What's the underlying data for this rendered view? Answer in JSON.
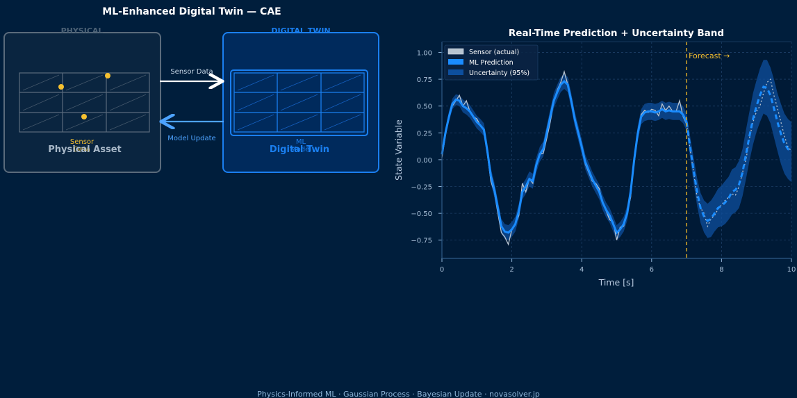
{
  "title": "ML-Enhanced Digital Twin — CAE",
  "footer": "Physics-Informed ML · Gaussian Process · Bayesian Update · novasolver.jp",
  "diagram": {
    "physical_header": "PHYSICAL",
    "physical_label": "Physical Asset",
    "sensor_label": "Sensor",
    "sensor_label_2": "Data",
    "twin_header": "DIGITAL TWIN",
    "twin_label": "Digital Twin",
    "ml_label": "ML",
    "ml_label_2": "Model",
    "arrow_forward_label": "Sensor Data",
    "arrow_back_label": "Model Update",
    "colors": {
      "physical_border": "#5a6b7c",
      "twin_border": "#1a7ff0",
      "sensor_dot": "#f5c030",
      "arrow_forward": "#ffffff",
      "arrow_back": "#4da3ff"
    }
  },
  "chart_data": {
    "type": "line",
    "title": "Real-Time Prediction + Uncertainty Band",
    "xlabel": "Time  [s]",
    "ylabel": "State Variable",
    "xlim": [
      0,
      10
    ],
    "ylim": [
      -0.92,
      1.1
    ],
    "xticks": [
      "0",
      "2",
      "4",
      "6",
      "8",
      "10"
    ],
    "yticks": [
      "−0.75",
      "−0.50",
      "−0.25",
      "0.00",
      "0.25",
      "0.50",
      "0.75",
      "1.00"
    ],
    "ytick_values": [
      -0.75,
      -0.5,
      -0.25,
      0,
      0.25,
      0.5,
      0.75,
      1.0
    ],
    "grid": true,
    "legend_position": "top-left",
    "forecast_x": 7.0,
    "forecast_label": "Forecast →",
    "x": [
      0.0,
      0.1,
      0.2,
      0.3,
      0.4,
      0.5,
      0.6,
      0.7,
      0.8,
      0.9,
      1.0,
      1.1,
      1.2,
      1.3,
      1.4,
      1.5,
      1.6,
      1.7,
      1.8,
      1.9,
      2.0,
      2.1,
      2.2,
      2.3,
      2.4,
      2.5,
      2.6,
      2.7,
      2.8,
      2.9,
      3.0,
      3.1,
      3.2,
      3.3,
      3.4,
      3.5,
      3.6,
      3.7,
      3.8,
      3.9,
      4.0,
      4.1,
      4.2,
      4.3,
      4.4,
      4.5,
      4.6,
      4.7,
      4.8,
      4.9,
      5.0,
      5.1,
      5.2,
      5.3,
      5.4,
      5.5,
      5.6,
      5.7,
      5.8,
      5.9,
      6.0,
      6.1,
      6.2,
      6.3,
      6.4,
      6.5,
      6.6,
      6.7,
      6.8,
      6.9,
      7.0,
      7.1,
      7.2,
      7.3,
      7.4,
      7.5,
      7.6,
      7.7,
      7.8,
      7.9,
      8.0,
      8.1,
      8.2,
      8.3,
      8.4,
      8.5,
      8.6,
      8.7,
      8.8,
      8.9,
      9.0,
      9.1,
      9.2,
      9.3,
      9.4,
      9.5,
      9.6,
      9.7,
      9.8,
      9.9,
      10.0
    ],
    "series": [
      {
        "name": "Sensor (actual)",
        "color": "#b8c4d0",
        "values": [
          0.02,
          0.22,
          0.4,
          0.5,
          0.55,
          0.6,
          0.5,
          0.55,
          0.45,
          0.4,
          0.38,
          0.32,
          0.28,
          0.05,
          -0.2,
          -0.3,
          -0.5,
          -0.68,
          -0.72,
          -0.79,
          -0.65,
          -0.6,
          -0.52,
          -0.22,
          -0.3,
          -0.18,
          -0.22,
          -0.06,
          0.05,
          0.06,
          0.2,
          0.35,
          0.55,
          0.65,
          0.72,
          0.82,
          0.7,
          0.57,
          0.4,
          0.23,
          0.14,
          -0.04,
          -0.12,
          -0.2,
          -0.22,
          -0.27,
          -0.4,
          -0.48,
          -0.56,
          -0.58,
          -0.75,
          -0.63,
          -0.62,
          -0.5,
          -0.35,
          0.0,
          0.25,
          0.42,
          0.46,
          0.44,
          0.47,
          0.46,
          0.41,
          0.52,
          0.46,
          0.5,
          0.45,
          0.45,
          0.55,
          0.4,
          0.33,
          0.1,
          -0.12,
          -0.35,
          -0.45,
          -0.5,
          -0.62,
          -0.55,
          -0.52,
          -0.46,
          -0.42,
          -0.38,
          -0.35,
          -0.32,
          -0.33,
          -0.25,
          -0.12,
          0.0,
          0.2,
          0.35,
          0.45,
          0.5,
          0.62,
          0.72,
          0.75,
          0.6,
          0.48,
          0.35,
          0.22,
          0.12,
          0.08
        ]
      },
      {
        "name": "ML Prediction",
        "color": "#1a8cff",
        "values": [
          0.05,
          0.25,
          0.4,
          0.52,
          0.56,
          0.55,
          0.5,
          0.48,
          0.45,
          0.4,
          0.35,
          0.32,
          0.28,
          0.08,
          -0.15,
          -0.28,
          -0.45,
          -0.62,
          -0.67,
          -0.68,
          -0.65,
          -0.6,
          -0.48,
          -0.3,
          -0.25,
          -0.18,
          -0.2,
          -0.05,
          0.05,
          0.1,
          0.25,
          0.4,
          0.55,
          0.63,
          0.7,
          0.73,
          0.7,
          0.55,
          0.38,
          0.25,
          0.12,
          -0.02,
          -0.1,
          -0.18,
          -0.24,
          -0.3,
          -0.4,
          -0.47,
          -0.52,
          -0.6,
          -0.68,
          -0.65,
          -0.6,
          -0.5,
          -0.3,
          0.0,
          0.24,
          0.4,
          0.44,
          0.45,
          0.45,
          0.44,
          0.45,
          0.47,
          0.45,
          0.46,
          0.45,
          0.45,
          0.45,
          0.42,
          0.35,
          0.12,
          -0.1,
          -0.3,
          -0.45,
          -0.53,
          -0.57,
          -0.55,
          -0.5,
          -0.45,
          -0.43,
          -0.4,
          -0.36,
          -0.3,
          -0.28,
          -0.23,
          -0.12,
          0.05,
          0.22,
          0.38,
          0.5,
          0.6,
          0.68,
          0.67,
          0.6,
          0.48,
          0.35,
          0.24,
          0.15,
          0.1,
          0.07
        ]
      },
      {
        "name": "Uncertainty (95%)",
        "color": "#0d4f9e",
        "band_halfwidth": [
          0.04,
          0.04,
          0.05,
          0.05,
          0.05,
          0.05,
          0.06,
          0.06,
          0.06,
          0.06,
          0.06,
          0.06,
          0.06,
          0.07,
          0.07,
          0.07,
          0.07,
          0.07,
          0.07,
          0.07,
          0.07,
          0.07,
          0.07,
          0.07,
          0.07,
          0.07,
          0.07,
          0.07,
          0.07,
          0.07,
          0.07,
          0.07,
          0.07,
          0.07,
          0.07,
          0.07,
          0.07,
          0.07,
          0.07,
          0.07,
          0.07,
          0.07,
          0.07,
          0.07,
          0.07,
          0.07,
          0.07,
          0.07,
          0.07,
          0.07,
          0.07,
          0.07,
          0.07,
          0.07,
          0.07,
          0.07,
          0.07,
          0.07,
          0.08,
          0.08,
          0.08,
          0.08,
          0.08,
          0.08,
          0.08,
          0.08,
          0.08,
          0.08,
          0.08,
          0.08,
          0.08,
          0.1,
          0.12,
          0.13,
          0.14,
          0.15,
          0.16,
          0.17,
          0.17,
          0.18,
          0.19,
          0.2,
          0.2,
          0.21,
          0.21,
          0.22,
          0.22,
          0.23,
          0.23,
          0.24,
          0.24,
          0.25,
          0.25,
          0.26,
          0.26,
          0.27,
          0.27,
          0.28,
          0.28,
          0.28,
          0.28
        ]
      }
    ]
  }
}
